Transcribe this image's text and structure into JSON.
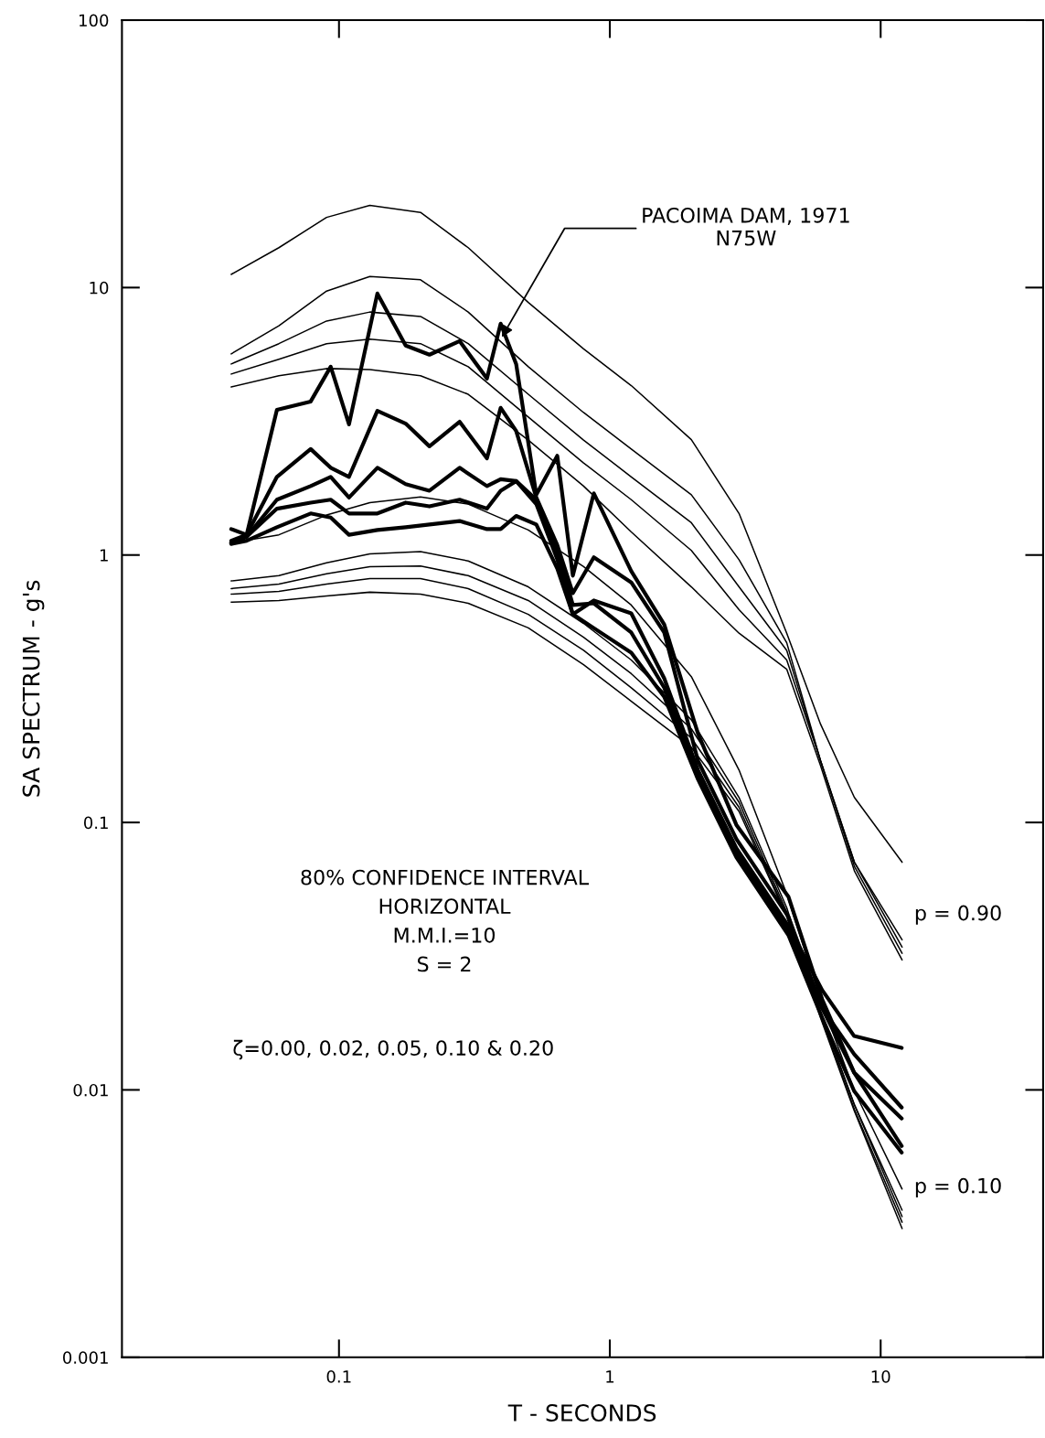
{
  "chart_data": {
    "type": "line",
    "xlabel": "T - SECONDS",
    "ylabel": "SA SPECTRUM - g's",
    "log": "xy",
    "grid": false,
    "xlim": [
      0.0158,
      39.8
    ],
    "ylim": [
      0.001,
      100
    ],
    "xticks": [
      0.1,
      1,
      10
    ],
    "yticks": [
      0.001,
      0.01,
      0.1,
      1,
      10,
      100
    ],
    "x": [
      0.04,
      0.06,
      0.09,
      0.13,
      0.2,
      0.3,
      0.5,
      0.8,
      1.2,
      2,
      3,
      4.5,
      6,
      8,
      12
    ],
    "series": [
      {
        "color": "#000000",
        "values": [
          11.2,
          14.1,
          18.3,
          20.3,
          19.1,
          14.1,
          8.8,
          5.9,
          4.3,
          2.7,
          1.43,
          0.51,
          0.233,
          0.124,
          0.071
        ]
      },
      {
        "color": "#000000",
        "values": [
          5.65,
          7.2,
          9.7,
          11.0,
          10.7,
          8.1,
          5.06,
          3.41,
          2.49,
          1.68,
          0.96,
          0.47,
          0.17,
          0.071,
          0.0364
        ]
      },
      {
        "color": "#000000",
        "values": [
          5.18,
          6.17,
          7.5,
          8.1,
          7.8,
          6.17,
          3.99,
          2.69,
          1.96,
          1.32,
          0.76,
          0.44,
          0.17,
          0.071,
          0.0342
        ]
      },
      {
        "color": "#000000",
        "values": [
          4.75,
          5.39,
          6.17,
          6.41,
          6.17,
          5.06,
          3.28,
          2.21,
          1.61,
          1.04,
          0.625,
          0.405,
          0.17,
          0.0685,
          0.0324
        ]
      },
      {
        "color": "#000000",
        "values": [
          4.25,
          4.68,
          4.98,
          4.94,
          4.68,
          3.99,
          2.69,
          1.81,
          1.22,
          0.76,
          0.51,
          0.374,
          0.163,
          0.0659,
          0.0306
        ]
      },
      {
        "color": "#000000",
        "values": [
          1.11,
          1.19,
          1.41,
          1.57,
          1.65,
          1.55,
          1.24,
          0.905,
          0.65,
          0.351,
          0.157,
          0.054,
          0.0218,
          0.0099,
          0.00426
        ]
      },
      {
        "color": "#000000",
        "values": [
          0.8,
          0.837,
          0.935,
          1.01,
          1.03,
          0.95,
          0.76,
          0.555,
          0.405,
          0.242,
          0.124,
          0.048,
          0.0194,
          0.0088,
          0.00355
        ]
      },
      {
        "color": "#000000",
        "values": [
          0.749,
          0.779,
          0.85,
          0.905,
          0.91,
          0.837,
          0.676,
          0.493,
          0.36,
          0.224,
          0.119,
          0.0462,
          0.0194,
          0.0088,
          0.00336
        ]
      },
      {
        "color": "#000000",
        "values": [
          0.714,
          0.731,
          0.779,
          0.817,
          0.817,
          0.749,
          0.6,
          0.44,
          0.319,
          0.207,
          0.114,
          0.0451,
          0.0189,
          0.00846,
          0.0032
        ]
      },
      {
        "color": "#000000",
        "values": [
          0.666,
          0.676,
          0.703,
          0.726,
          0.714,
          0.66,
          0.534,
          0.389,
          0.284,
          0.191,
          0.11,
          0.0444,
          0.0186,
          0.00833,
          0.00303
        ]
      },
      {
        "color": "#000000",
        "x": [
          0.04,
          0.0456,
          0.059,
          0.0786,
          0.0932,
          0.1089,
          0.1386,
          0.1763,
          0.2158,
          0.2788,
          0.3518,
          0.3954,
          0.451,
          0.5353,
          0.6398,
          0.7303,
          0.873,
          1.2,
          1.588,
          2.116,
          2.932,
          4.565,
          6.083,
          7.983,
          11.96
        ],
        "values": [
          1.25,
          1.19,
          3.49,
          3.75,
          5.06,
          3.08,
          9.5,
          6.07,
          5.61,
          6.31,
          4.57,
          7.33,
          5.18,
          1.68,
          2.35,
          0.837,
          1.7,
          0.87,
          0.55,
          0.215,
          0.098,
          0.0528,
          0.0218,
          0.0116,
          0.00617
        ]
      },
      {
        "color": "#000000",
        "x": [
          0.04,
          0.0456,
          0.059,
          0.0786,
          0.0932,
          0.1089,
          0.1386,
          0.1763,
          0.2158,
          0.2788,
          0.3518,
          0.3954,
          0.451,
          0.5353,
          0.6398,
          0.7303,
          0.873,
          1.2,
          1.588,
          2.116,
          2.932,
          4.565,
          6.083,
          7.983,
          11.96
        ],
        "values": [
          1.13,
          1.19,
          1.96,
          2.49,
          2.12,
          1.96,
          3.46,
          3.1,
          2.55,
          3.15,
          2.3,
          3.55,
          2.91,
          1.64,
          1.09,
          0.72,
          0.98,
          0.79,
          0.513,
          0.17,
          0.0868,
          0.0444,
          0.0202,
          0.0136,
          0.00859
        ]
      },
      {
        "color": "#000000",
        "x": [
          0.04,
          0.0456,
          0.059,
          0.0786,
          0.0932,
          0.1089,
          0.1386,
          0.1763,
          0.2158,
          0.2788,
          0.3518,
          0.3954,
          0.451,
          0.5353,
          0.6398,
          0.7303,
          0.873,
          1.2,
          1.588,
          2.116,
          2.932,
          4.565,
          6.083,
          7.983,
          11.96
        ],
        "values": [
          1.11,
          1.17,
          1.61,
          1.81,
          1.96,
          1.64,
          2.12,
          1.84,
          1.74,
          2.12,
          1.81,
          1.92,
          1.89,
          1.55,
          0.964,
          0.6,
          0.676,
          0.605,
          0.346,
          0.157,
          0.0802,
          0.041,
          0.0236,
          0.0159,
          0.01436
        ]
      },
      {
        "color": "#000000",
        "x": [
          0.04,
          0.0456,
          0.059,
          0.0786,
          0.0932,
          0.1089,
          0.1386,
          0.1763,
          0.2158,
          0.2788,
          0.3518,
          0.3954,
          0.451,
          0.5353,
          0.6398,
          0.7303,
          0.873,
          1.2,
          1.588,
          2.116,
          2.932,
          4.565,
          6.083,
          7.983,
          11.96
        ],
        "values": [
          1.11,
          1.17,
          1.49,
          1.57,
          1.61,
          1.43,
          1.43,
          1.57,
          1.52,
          1.61,
          1.49,
          1.74,
          1.89,
          1.61,
          1.04,
          0.65,
          0.66,
          0.513,
          0.319,
          0.151,
          0.077,
          0.0394,
          0.0202,
          0.0116,
          0.00782
        ]
      },
      {
        "color": "#000000",
        "x": [
          0.04,
          0.0456,
          0.059,
          0.0786,
          0.0932,
          0.1089,
          0.1386,
          0.1763,
          0.2158,
          0.2788,
          0.3518,
          0.3954,
          0.451,
          0.5353,
          0.6398,
          0.7303,
          0.873,
          1.2,
          1.588,
          2.116,
          2.932,
          4.565,
          6.083,
          7.983,
          11.96
        ],
        "values": [
          1.1,
          1.13,
          1.27,
          1.43,
          1.38,
          1.19,
          1.24,
          1.27,
          1.3,
          1.34,
          1.25,
          1.25,
          1.4,
          1.3,
          0.89,
          0.6,
          0.533,
          0.431,
          0.295,
          0.145,
          0.0741,
          0.0379,
          0.0186,
          0.0099,
          0.00583
        ]
      }
    ],
    "annotations": [
      {
        "text": "PACOIMA DAM, 1971\nN75W",
        "x": 0.395,
        "y": 6.4
      },
      "p = 0.90",
      "p = 0.10",
      "80% CONFIDENCE INTERVAL\nHORIZONTAL\nM.M.I.=10\nS = 2",
      "ζ=0.00, 0.02, 0.05, 0.10 & 0.20"
    ]
  }
}
